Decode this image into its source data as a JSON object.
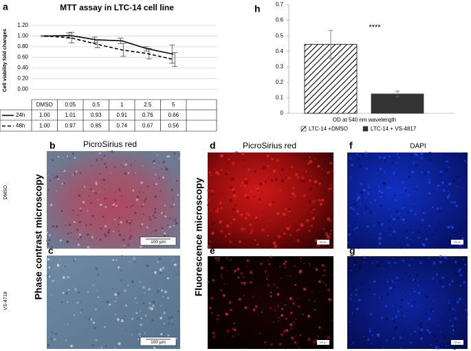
{
  "chart_data": [
    {
      "type": "line",
      "panel": "a",
      "title": "MTT assay in LTC-14 cell line",
      "ylabel": "Cell viability fold changes",
      "categories": [
        "DMSO",
        "0.05",
        "0.5",
        "1",
        "2.5",
        "5"
      ],
      "ylim": [
        0,
        1.2
      ],
      "yticks": [
        {
          "value": 0,
          "label": "0.00"
        },
        {
          "value": 0.2,
          "label": "0.20"
        },
        {
          "value": 0.4,
          "label": "0.40"
        },
        {
          "value": 0.6,
          "label": "0.60"
        },
        {
          "value": 0.8,
          "label": "0.80"
        },
        {
          "value": 1,
          "label": "1.00"
        },
        {
          "value": 1.2,
          "label": "1.20"
        }
      ],
      "grid": true,
      "series": [
        {
          "name": "24h",
          "color": "#000000",
          "dash": false,
          "values": [
            1.0,
            1.01,
            0.93,
            0.91,
            0.76,
            0.66
          ],
          "value_labels": [
            "1.00",
            "1.01",
            "0.93",
            "0.91",
            "0.76",
            "0.66"
          ],
          "errors": [
            0.01,
            0.05,
            0.05,
            0.05,
            0.04,
            0.17
          ]
        },
        {
          "name": "48h",
          "color": "#000000",
          "dash": true,
          "values": [
            1.0,
            0.97,
            0.85,
            0.74,
            0.67,
            0.56
          ],
          "value_labels": [
            "1.00",
            "0.97",
            "0.85",
            "0.74",
            "0.67",
            "0.56"
          ],
          "errors": [
            0.01,
            0.1,
            0.07,
            0.12,
            0.1,
            0.13
          ]
        }
      ]
    },
    {
      "type": "bar",
      "panel": "h",
      "xlabel": "OD at 540 nm wavelength",
      "annotation": "****",
      "ylim": [
        0,
        0.7
      ],
      "yticks": [
        0,
        0.1,
        0.2,
        0.3,
        0.4,
        0.5,
        0.6,
        0.7
      ],
      "grid": false,
      "series": [
        {
          "name": "LTC-14 +DMSO",
          "color": "#000000",
          "pattern": "hatch",
          "values": [
            0.445
          ],
          "errors": [
            0.09
          ]
        },
        {
          "name": "LTC-14 + VS-4817",
          "color": "#333333",
          "values": [
            0.125
          ],
          "errors": [
            0.018
          ]
        }
      ]
    }
  ],
  "rows": [
    "DMSO",
    "VS-4718"
  ],
  "columns": [
    "Phase contrast microscopy",
    "Fluorescence microscopy"
  ],
  "panels": [
    {
      "letter": "b",
      "title": "PicroSirius red",
      "scale": "100 µm"
    },
    {
      "letter": "c",
      "scale": "100 µm"
    },
    {
      "letter": "d",
      "title": "PicroSirius red",
      "scale": "100 µm"
    },
    {
      "letter": "e",
      "scale": "100 µm"
    },
    {
      "letter": "f",
      "title": "DAPI",
      "scale": "100 µm"
    },
    {
      "letter": "g",
      "scale": "100 µm"
    }
  ]
}
